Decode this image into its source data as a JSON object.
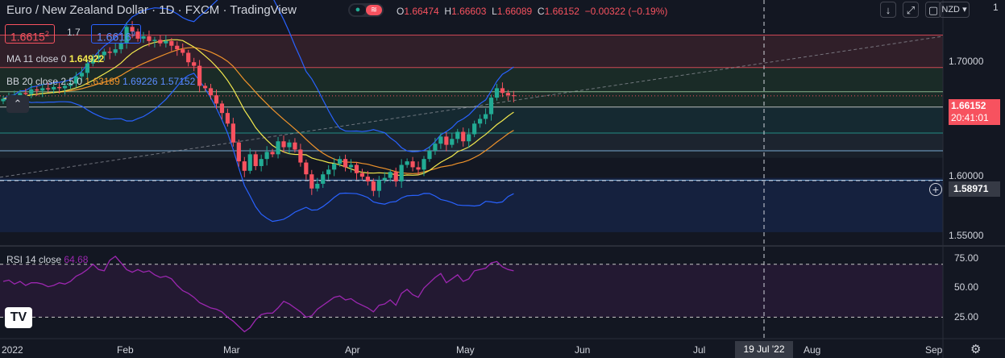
{
  "header": {
    "symbol": "Euro / New Zealand Dollar",
    "interval": "1D",
    "source": "FXCM",
    "platform": "TradingView",
    "sep": "·",
    "ohlc": {
      "o_label": "O",
      "o": "1.66474",
      "h_label": "H",
      "h": "1.66603",
      "l_label": "L",
      "l": "1.66089",
      "c_label": "C",
      "c": "1.66152",
      "change": "−0.00322 (−0.19%)"
    },
    "currency": "NZD"
  },
  "toolbar": {
    "down_icon": "↓",
    "fullscreen_icon": "⤢",
    "window_icon": "▢"
  },
  "trade": {
    "sell_price": "1.6615",
    "sell_sup": "2",
    "spread": "1.7",
    "buy_price": "1.6616",
    "buy_sup": "9"
  },
  "indicators": {
    "ma": {
      "label": "MA 11 close 0",
      "value": "1.64922"
    },
    "bb": {
      "label": "BB 20 close 2.5 0",
      "basis": "1.63189",
      "upper": "1.69226",
      "lower": "1.57152"
    },
    "rsi": {
      "label": "RSI 14 close",
      "value": "64.68"
    }
  },
  "price_axis": {
    "labels": [
      "1.70000",
      "1.60000",
      "1.55000"
    ],
    "current": "1.66152",
    "countdown": "20:41:01",
    "crosshair": "1.58971",
    "top_partial": "1"
  },
  "rsi_axis": {
    "labels": [
      "75.00",
      "50.00",
      "25.00"
    ]
  },
  "time_axis": {
    "labels": [
      "2022",
      "Feb",
      "Mar",
      "Apr",
      "May",
      "Jun",
      "Jul",
      "Aug",
      "Sep"
    ],
    "crosshair_date": "19 Jul '22"
  },
  "logo_text": "TV",
  "colors": {
    "up": "#22ab94",
    "down": "#f7525f",
    "bb": "#2962ff",
    "ma": "#f2e94e",
    "basis": "#f0932b",
    "rsi": "#9c27b0",
    "bg": "#131722"
  },
  "chart_data": {
    "type": "candlestick",
    "title": "Euro / New Zealand Dollar · 1D · FXCM",
    "ylim": [
      1.535,
      1.725
    ],
    "rsi_ylim": [
      15,
      82
    ],
    "zones": [
      {
        "from": 1.6855,
        "to": 1.713,
        "color": "#f7525f"
      },
      {
        "from": 1.652,
        "to": 1.6855,
        "color": "#4caf50"
      },
      {
        "from": 1.63,
        "to": 1.652,
        "color": "#26a69a"
      },
      {
        "from": 1.615,
        "to": 1.63,
        "color": "#607d8b"
      },
      {
        "from": 1.609,
        "to": 1.615,
        "color": "#455a64"
      },
      {
        "from": 1.546,
        "to": 1.592,
        "color": "#2962ff"
      }
    ],
    "hlines": [
      {
        "value": 1.713,
        "color": "#f7525f"
      },
      {
        "value": 1.6855,
        "color": "#f7525f"
      },
      {
        "value": 1.665,
        "color": "#a5d6a7"
      },
      {
        "value": 1.652,
        "color": "#e0e0e0"
      },
      {
        "value": 1.63,
        "color": "#26a69a"
      },
      {
        "value": 1.615,
        "color": "#90caf9"
      },
      {
        "value": 1.59,
        "color": "#90caf9"
      }
    ],
    "closes": [
      1.659,
      1.6605,
      1.661,
      1.664,
      1.663,
      1.667,
      1.666,
      1.668,
      1.667,
      1.669,
      1.668,
      1.67,
      1.672,
      1.678,
      1.681,
      1.689,
      1.693,
      1.696,
      1.699,
      1.698,
      1.701,
      1.706,
      1.72,
      1.716,
      1.71,
      1.712,
      1.708,
      1.709,
      1.706,
      1.708,
      1.704,
      1.701,
      1.698,
      1.69,
      1.687,
      1.67,
      1.668,
      1.662,
      1.655,
      1.647,
      1.638,
      1.622,
      1.606,
      1.598,
      1.612,
      1.602,
      1.608,
      1.614,
      1.612,
      1.623,
      1.618,
      1.622,
      1.616,
      1.605,
      1.595,
      1.583,
      1.587,
      1.595,
      1.599,
      1.604,
      1.608,
      1.601,
      1.603,
      1.596,
      1.593,
      1.589,
      1.581,
      1.59,
      1.592,
      1.597,
      1.589,
      1.603,
      1.606,
      1.601,
      1.599,
      1.608,
      1.615,
      1.621,
      1.627,
      1.62,
      1.625,
      1.631,
      1.623,
      1.629,
      1.638,
      1.642,
      1.646,
      1.66,
      1.668,
      1.664,
      1.662,
      1.6615
    ],
    "rsi": [
      57,
      58,
      55,
      57,
      54,
      56,
      56,
      55,
      53,
      54,
      56,
      55,
      57,
      61,
      63,
      66,
      70,
      66,
      65,
      73,
      76,
      71,
      66,
      64,
      66,
      64,
      65,
      62,
      60,
      61,
      59,
      54,
      50,
      48,
      45,
      41,
      39,
      37,
      36,
      34,
      30,
      27,
      23,
      19,
      22,
      28,
      32,
      33,
      33,
      37,
      42,
      40,
      37,
      34,
      30,
      31,
      36,
      39,
      42,
      45,
      46,
      43,
      44,
      41,
      39,
      37,
      34,
      39,
      40,
      43,
      39,
      48,
      51,
      47,
      45,
      52,
      56,
      60,
      63,
      56,
      59,
      62,
      57,
      59,
      65,
      66,
      67,
      71,
      72,
      68,
      66,
      65
    ]
  }
}
